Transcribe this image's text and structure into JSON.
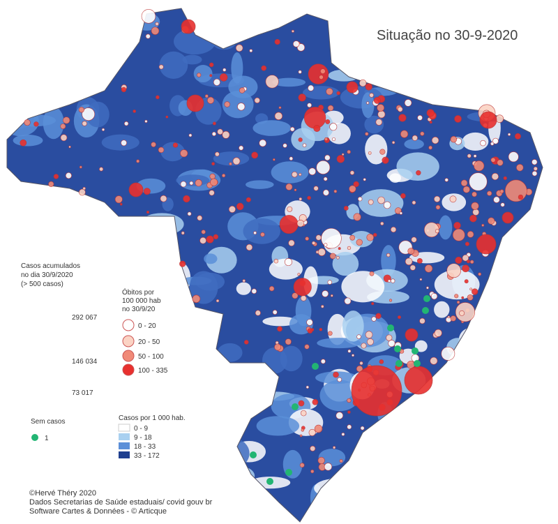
{
  "title": "Situação no 30-9-2020",
  "size_legend": {
    "lines": [
      "Casos acumulados",
      "no dia 30/9/2020",
      "(> 500 casos)"
    ],
    "values": [
      "292 067",
      "146 034",
      "73 017"
    ]
  },
  "deaths_legend": {
    "lines": [
      "Óbitos por",
      "100 000 hab",
      "no 30/9/20"
    ],
    "classes": [
      "0 - 20",
      "20 - 50",
      "50 - 100",
      "100 - 335"
    ]
  },
  "no_cases_legend": {
    "title": "Sem casos",
    "label": "1"
  },
  "cases_legend": {
    "title": "Casos por 1 000 hab.",
    "classes": [
      "0 - 9",
      "9 - 18",
      "18 - 33",
      "33 - 172"
    ]
  },
  "credits": [
    "©Hervé Théry 2020",
    "Dados Secretarias de Saúde estaduais/ covid gouv br",
    "Software Cartes & Données - © Articque"
  ]
}
